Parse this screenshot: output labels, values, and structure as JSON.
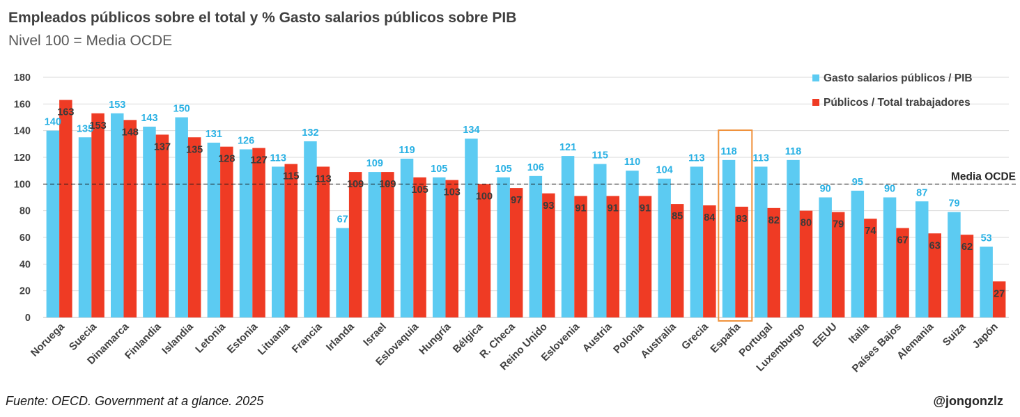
{
  "header": {
    "title": "Empleados públicos sobre el total y % Gasto salarios públicos sobre PIB",
    "subtitle": "Nivel 100 = Media OCDE"
  },
  "footer": {
    "source": "Fuente: OECD. Government at a glance. 2025",
    "handle": "@jongonzlz"
  },
  "colors": {
    "series1": "#5ccbf2",
    "series2": "#ef3b24",
    "label1": "#29b1e4",
    "label2": "#3a3a3a",
    "highlight": "#f0923c",
    "grid": "#d9d9d9",
    "axis_text": "#404040"
  },
  "chart_data": {
    "type": "bar",
    "title": "Empleados públicos sobre el total y % Gasto salarios públicos sobre PIB",
    "subtitle": "Nivel 100 = Media OCDE",
    "categories": [
      "Noruega",
      "Suecia",
      "Dinamarca",
      "Finlandia",
      "Islandia",
      "Letonia",
      "Estonia",
      "Lituania",
      "Francia",
      "Irlanda",
      "Israel",
      "Eslovaquia",
      "Hungría",
      "Bélgica",
      "R. Checa",
      "Reino Unido",
      "Eslovenia",
      "Austria",
      "Polonia",
      "Australia",
      "Grecia",
      "España",
      "Portugal",
      "Luxemburgo",
      "EEUU",
      "Italia",
      "Países Bajos",
      "Alemania",
      "Suiza",
      "Japón"
    ],
    "series": [
      {
        "name": "Gasto salarios públicos / PIB",
        "values": [
          140,
          135,
          153,
          143,
          150,
          131,
          126,
          113,
          132,
          67,
          109,
          119,
          105,
          134,
          105,
          106,
          121,
          115,
          110,
          104,
          113,
          118,
          113,
          118,
          90,
          95,
          90,
          87,
          79,
          53
        ]
      },
      {
        "name": "Públicos / Total trabajadores",
        "values": [
          163,
          153,
          148,
          137,
          135,
          128,
          127,
          115,
          113,
          109,
          109,
          105,
          103,
          100,
          97,
          93,
          91,
          91,
          91,
          85,
          84,
          83,
          82,
          80,
          79,
          74,
          67,
          63,
          62,
          27
        ]
      }
    ],
    "ylim": [
      0,
      180
    ],
    "yticks": [
      0,
      20,
      40,
      60,
      80,
      100,
      120,
      140,
      160,
      180
    ],
    "reference_line": {
      "value": 100,
      "label": "Media OCDE"
    },
    "highlight_category": "España",
    "grid": true,
    "legend_position": "top-right"
  }
}
